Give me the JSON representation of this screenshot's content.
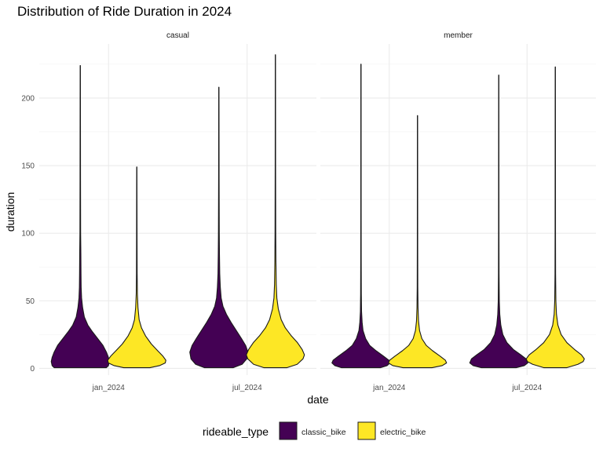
{
  "chart_data": {
    "type": "violin",
    "title": "Distribution of Ride Duration in 2024",
    "xlabel": "date",
    "ylabel": "duration",
    "ylim": [
      -5,
      240
    ],
    "y_ticks": [
      0,
      50,
      100,
      150,
      200
    ],
    "grid": true,
    "legend": {
      "title": "rideable_type",
      "position": "bottom",
      "entries": [
        {
          "name": "classic_bike",
          "color": "#440154"
        },
        {
          "name": "electric_bike",
          "color": "#FDE725"
        }
      ]
    },
    "categories": [
      "jan_2024",
      "jul_2024"
    ],
    "facets": [
      {
        "label": "casual",
        "violins": [
          {
            "date": "jan_2024",
            "rideable_type": "classic_bike",
            "min": 0.5,
            "max": 224,
            "profile": [
              [
                0.5,
                0.9
              ],
              [
                2,
                0.97
              ],
              [
                5,
                1.0
              ],
              [
                8,
                0.97
              ],
              [
                12,
                0.9
              ],
              [
                17,
                0.78
              ],
              [
                22,
                0.6
              ],
              [
                27,
                0.42
              ],
              [
                32,
                0.26
              ],
              [
                38,
                0.14
              ],
              [
                45,
                0.08
              ],
              [
                52,
                0.045
              ],
              [
                60,
                0.03
              ],
              [
                70,
                0.025
              ],
              [
                85,
                0.02
              ],
              [
                100,
                0.012
              ],
              [
                140,
                0.008
              ],
              [
                224,
                0.004
              ]
            ]
          },
          {
            "date": "jan_2024",
            "rideable_type": "electric_bike",
            "min": 0.5,
            "max": 149,
            "profile": [
              [
                0.5,
                0.45
              ],
              [
                2,
                0.78
              ],
              [
                4,
                0.98
              ],
              [
                6,
                1.0
              ],
              [
                9,
                0.9
              ],
              [
                13,
                0.72
              ],
              [
                18,
                0.5
              ],
              [
                24,
                0.3
              ],
              [
                30,
                0.16
              ],
              [
                36,
                0.08
              ],
              [
                45,
                0.04
              ],
              [
                55,
                0.02
              ],
              [
                70,
                0.012
              ],
              [
                100,
                0.008
              ],
              [
                149,
                0.004
              ]
            ]
          },
          {
            "date": "jul_2024",
            "rideable_type": "classic_bike",
            "min": 0.5,
            "max": 208,
            "profile": [
              [
                0.5,
                0.5
              ],
              [
                3,
                0.8
              ],
              [
                7,
                0.96
              ],
              [
                12,
                1.0
              ],
              [
                17,
                0.92
              ],
              [
                22,
                0.78
              ],
              [
                28,
                0.6
              ],
              [
                34,
                0.42
              ],
              [
                40,
                0.26
              ],
              [
                46,
                0.14
              ],
              [
                52,
                0.08
              ],
              [
                60,
                0.05
              ],
              [
                70,
                0.03
              ],
              [
                85,
                0.02
              ],
              [
                100,
                0.014
              ],
              [
                140,
                0.008
              ],
              [
                208,
                0.004
              ]
            ]
          },
          {
            "date": "jul_2024",
            "rideable_type": "electric_bike",
            "min": 0.5,
            "max": 232,
            "profile": [
              [
                0.5,
                0.4
              ],
              [
                3,
                0.75
              ],
              [
                7,
                0.95
              ],
              [
                10,
                1.0
              ],
              [
                14,
                0.92
              ],
              [
                19,
                0.76
              ],
              [
                24,
                0.55
              ],
              [
                30,
                0.34
              ],
              [
                36,
                0.2
              ],
              [
                44,
                0.1
              ],
              [
                52,
                0.05
              ],
              [
                62,
                0.03
              ],
              [
                80,
                0.018
              ],
              [
                100,
                0.012
              ],
              [
                150,
                0.007
              ],
              [
                232,
                0.004
              ]
            ]
          }
        ]
      },
      {
        "label": "member",
        "violins": [
          {
            "date": "jan_2024",
            "rideable_type": "classic_bike",
            "min": 0.5,
            "max": 225,
            "profile": [
              [
                0.5,
                0.68
              ],
              [
                2,
                0.9
              ],
              [
                4,
                1.0
              ],
              [
                6,
                0.96
              ],
              [
                9,
                0.78
              ],
              [
                13,
                0.52
              ],
              [
                17,
                0.3
              ],
              [
                22,
                0.16
              ],
              [
                28,
                0.07
              ],
              [
                34,
                0.04
              ],
              [
                42,
                0.02
              ],
              [
                55,
                0.012
              ],
              [
                80,
                0.008
              ],
              [
                120,
                0.006
              ],
              [
                225,
                0.004
              ]
            ]
          },
          {
            "date": "jan_2024",
            "rideable_type": "electric_bike",
            "min": 0.5,
            "max": 187,
            "profile": [
              [
                0.5,
                0.5
              ],
              [
                2,
                0.85
              ],
              [
                4,
                1.0
              ],
              [
                6,
                0.96
              ],
              [
                9,
                0.78
              ],
              [
                13,
                0.52
              ],
              [
                17,
                0.3
              ],
              [
                22,
                0.15
              ],
              [
                28,
                0.07
              ],
              [
                35,
                0.035
              ],
              [
                45,
                0.018
              ],
              [
                60,
                0.01
              ],
              [
                90,
                0.007
              ],
              [
                187,
                0.004
              ]
            ]
          },
          {
            "date": "jul_2024",
            "rideable_type": "classic_bike",
            "min": 0.5,
            "max": 217,
            "profile": [
              [
                0.5,
                0.6
              ],
              [
                2,
                0.88
              ],
              [
                4,
                1.0
              ],
              [
                7,
                0.94
              ],
              [
                10,
                0.76
              ],
              [
                14,
                0.5
              ],
              [
                19,
                0.28
              ],
              [
                25,
                0.14
              ],
              [
                32,
                0.07
              ],
              [
                40,
                0.035
              ],
              [
                50,
                0.018
              ],
              [
                70,
                0.01
              ],
              [
                100,
                0.007
              ],
              [
                217,
                0.004
              ]
            ]
          },
          {
            "date": "jul_2024",
            "rideable_type": "electric_bike",
            "min": 0.5,
            "max": 223,
            "profile": [
              [
                0.5,
                0.4
              ],
              [
                3,
                0.78
              ],
              [
                5,
                0.96
              ],
              [
                7,
                1.0
              ],
              [
                10,
                0.9
              ],
              [
                14,
                0.66
              ],
              [
                19,
                0.4
              ],
              [
                25,
                0.2
              ],
              [
                32,
                0.09
              ],
              [
                40,
                0.04
              ],
              [
                50,
                0.02
              ],
              [
                70,
                0.01
              ],
              [
                100,
                0.007
              ],
              [
                223,
                0.004
              ]
            ]
          }
        ]
      }
    ]
  }
}
